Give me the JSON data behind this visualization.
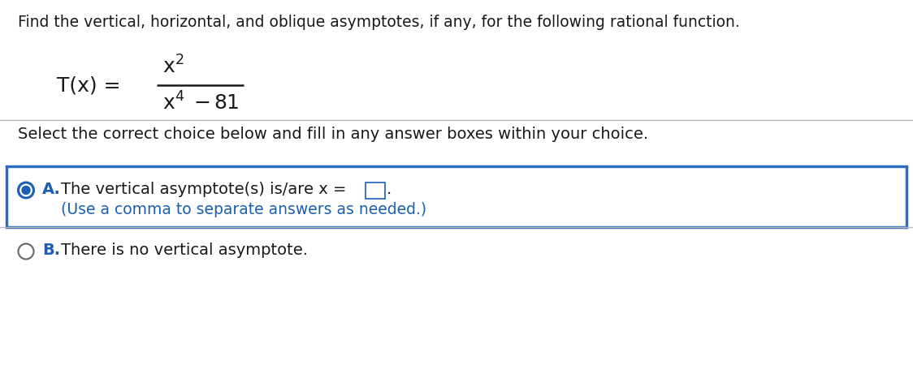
{
  "bg_color": "#ffffff",
  "title_text": "Find the vertical, horizontal, and oblique asymptotes, if any, for the following rational function.",
  "select_text": "Select the correct choice below and fill in any answer boxes within your choice.",
  "choice_A_hint": "(Use a comma to separate answers as needed.)",
  "choice_B_text": "There is no vertical asymptote.",
  "text_color_black": "#1a1a1a",
  "text_color_blue": "#1a5fb4",
  "radio_selected_color": "#1a5fb4",
  "box_border_color": "#2b6dbf",
  "box_bg_color": "#ffffff",
  "divider_color": "#bbbbbb",
  "ans_box_border": "#2b6dbf",
  "font_size_title": 13.5,
  "font_size_main": 14.0,
  "font_size_func": 18.0,
  "font_size_choice": 14.0
}
